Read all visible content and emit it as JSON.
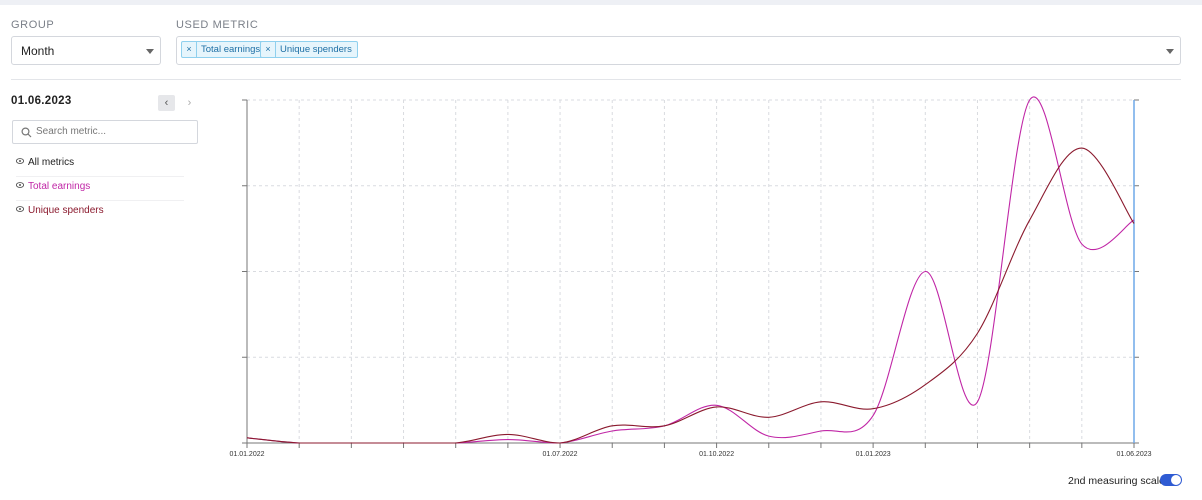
{
  "controls": {
    "group_label": "GROUP",
    "group_value": "Month",
    "metric_label": "USED METRIC",
    "selected_metrics": [
      "Total earnings",
      "Unique spenders"
    ]
  },
  "sidebar": {
    "current_date": "01.06.2023",
    "prev_icon": "chevron-left-icon",
    "next_icon": "chevron-right-icon",
    "search_placeholder": "Search metric...",
    "metrics": [
      {
        "label": "All metrics",
        "color": "#222222"
      },
      {
        "label": "Total earnings",
        "color": "#c026a6"
      },
      {
        "label": "Unique spenders",
        "color": "#8b1a2e"
      }
    ]
  },
  "footer": {
    "scale_label": "2nd measuring scale",
    "scale_enabled": true
  },
  "colors": {
    "accent": "#2f5bd3",
    "total_earnings": "#c026a6",
    "unique_spenders": "#8b1a2e",
    "cursor_line": "#6ea8e8"
  },
  "chart_data": {
    "type": "line",
    "x": [
      "01.01.2022",
      "01.02.2022",
      "01.03.2022",
      "01.04.2022",
      "01.05.2022",
      "01.06.2022",
      "01.07.2022",
      "01.08.2022",
      "01.09.2022",
      "01.10.2022",
      "01.11.2022",
      "01.12.2022",
      "01.01.2023",
      "01.02.2023",
      "01.03.2023",
      "01.04.2023",
      "01.05.2023",
      "01.06.2023"
    ],
    "x_tick_labels": [
      "01.01.2022",
      "01.07.2022",
      "01.10.2022",
      "01.01.2023",
      "01.06.2023"
    ],
    "series": [
      {
        "name": "Total earnings",
        "values": [
          0.015,
          0.0,
          0.0,
          0.0,
          0.0,
          0.01,
          0.0,
          0.035,
          0.05,
          0.11,
          0.02,
          0.035,
          0.08,
          0.5,
          0.12,
          1.0,
          0.58,
          0.65
        ]
      },
      {
        "name": "Unique spenders",
        "values": [
          0.015,
          0.0,
          0.0,
          0.0,
          0.0,
          0.025,
          0.0,
          0.05,
          0.05,
          0.105,
          0.075,
          0.12,
          0.1,
          0.17,
          0.32,
          0.65,
          0.86,
          0.64
        ]
      }
    ],
    "ylim": [
      0,
      1
    ],
    "grid": true,
    "selected_x": "01.06.2023"
  }
}
